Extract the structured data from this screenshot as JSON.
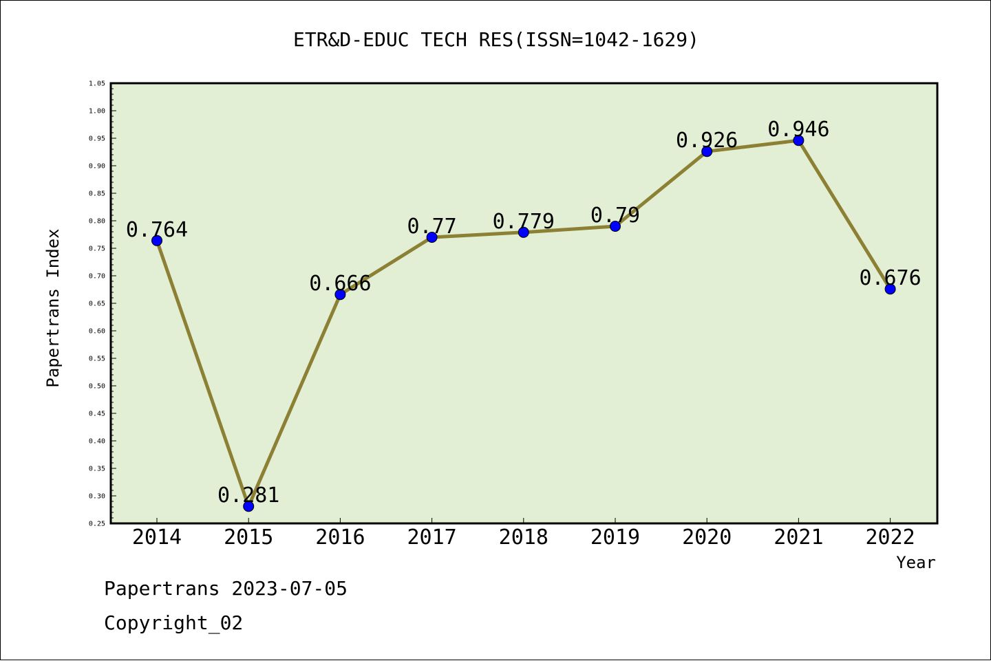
{
  "chart_data": {
    "type": "line",
    "title": "ETR&D-EDUC TECH RES(ISSN=1042-1629)",
    "xlabel": "Year",
    "ylabel": "Papertrans Index",
    "categories": [
      "2014",
      "2015",
      "2016",
      "2017",
      "2018",
      "2019",
      "2020",
      "2021",
      "2022"
    ],
    "values": [
      0.764,
      0.281,
      0.666,
      0.77,
      0.779,
      0.79,
      0.926,
      0.946,
      0.676
    ],
    "value_labels": [
      "0.764",
      "0.281",
      "0.666",
      "0.77",
      "0.779",
      "0.79",
      "0.926",
      "0.946",
      "0.676"
    ],
    "ylim": [
      0.25,
      1.05
    ],
    "yticks": [
      "0.25",
      "0.30",
      "0.35",
      "0.40",
      "0.45",
      "0.50",
      "0.55",
      "0.60",
      "0.65",
      "0.70",
      "0.75",
      "0.80",
      "0.85",
      "0.90",
      "0.95",
      "1.00",
      "1.05"
    ],
    "grid": false,
    "colors": {
      "plot_background": "#e2efd5",
      "line": "#8b8034",
      "marker": "#0000ff"
    }
  },
  "footer": {
    "line1": "Papertrans 2023-07-05",
    "line2": "Copyright_02"
  }
}
